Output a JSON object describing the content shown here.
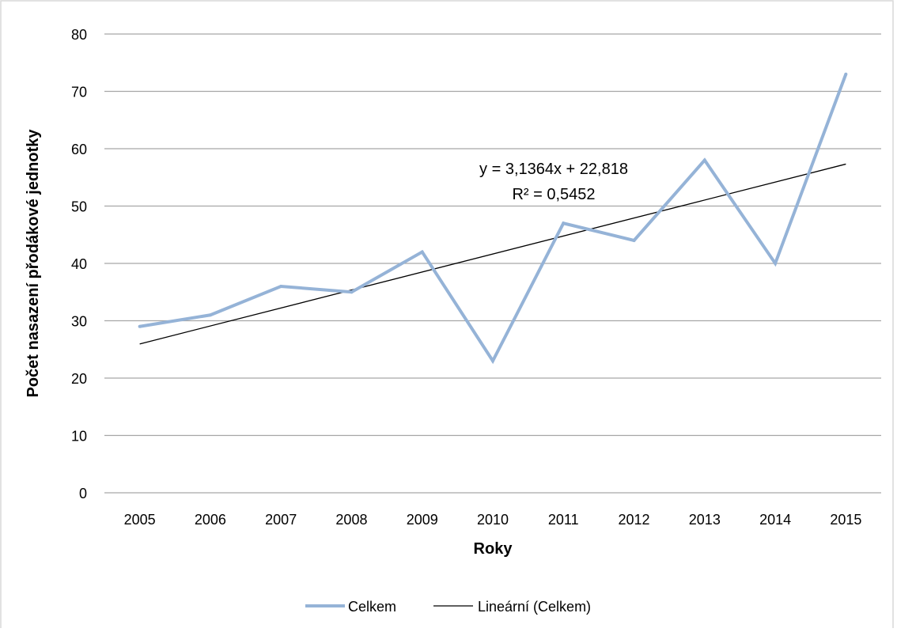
{
  "chart_data": {
    "type": "line",
    "title": "",
    "xlabel": "Roky",
    "ylabel": "Počet nasazení přodákové jednotky",
    "categories": [
      "2005",
      "2006",
      "2007",
      "2008",
      "2009",
      "2010",
      "2011",
      "2012",
      "2013",
      "2014",
      "2015"
    ],
    "ylim": [
      0,
      80
    ],
    "yticks": [
      0,
      10,
      20,
      30,
      40,
      50,
      60,
      70,
      80
    ],
    "grid": true,
    "legend_position": "bottom",
    "series": [
      {
        "name": "Celkem",
        "values": [
          29,
          31,
          36,
          35,
          42,
          23,
          47,
          44,
          58,
          40,
          73
        ],
        "color": "#95b3d7"
      }
    ],
    "trendline": {
      "name": "Lineární (Celkem)",
      "slope": 3.1364,
      "intercept": 22.818,
      "color": "#000000"
    },
    "annotation": {
      "equation": "y = 3,1364x + 22,818",
      "r_squared": "R² = 0,5452"
    }
  }
}
